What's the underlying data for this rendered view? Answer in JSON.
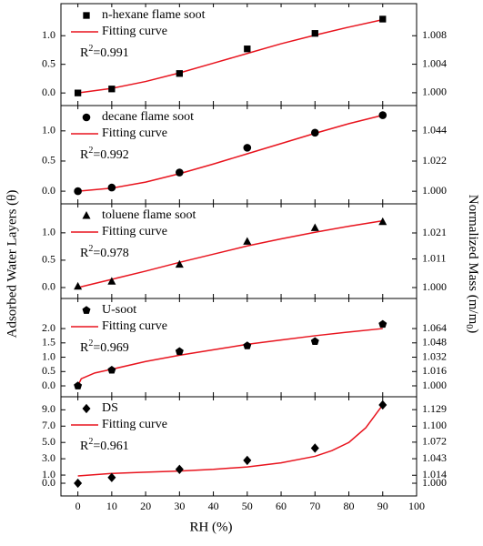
{
  "y_label": "Adsorbed Water Layers (θ)",
  "y2_label": [
    "Normalized Mass (m/m",
    "0",
    ")"
  ],
  "x_label": "RH (%)",
  "xlim": [
    -5,
    100
  ],
  "xticks": [
    0,
    10,
    20,
    30,
    40,
    50,
    60,
    70,
    80,
    90,
    100
  ],
  "chart_data": [
    {
      "type": "scatter",
      "ylim": [
        -0.22,
        1.56
      ],
      "yticks": [
        {
          "value": 0,
          "label": "0.0"
        },
        0.5,
        {
          "value": 1,
          "label": "1.0"
        }
      ],
      "y2lim": [
        0.9982,
        1.0125
      ],
      "y2ticks": [
        {
          "value": 1,
          "label": "1.000"
        },
        1.004,
        1.008
      ],
      "series": [
        {
          "name": "n-hexane flame soot",
          "marker": "square",
          "color": "#000000",
          "x": [
            0,
            10,
            30,
            50,
            70,
            90
          ],
          "values": [
            0,
            0.07,
            0.34,
            0.77,
            1.04,
            1.29
          ]
        },
        {
          "name": "Fitting curve",
          "color": "#e8141e",
          "x": [
            0,
            10,
            20,
            30,
            40,
            50,
            60,
            70,
            80,
            90
          ],
          "values": [
            0,
            0.08,
            0.2,
            0.35,
            0.52,
            0.69,
            0.86,
            1.01,
            1.15,
            1.28
          ]
        }
      ],
      "annotation": [
        "R",
        "2",
        "=0.991"
      ]
    },
    {
      "type": "scatter",
      "ylim": [
        -0.21,
        1.42
      ],
      "yticks": [
        {
          "value": 0,
          "label": "0.0"
        },
        0.5,
        {
          "value": 1,
          "label": "1.0"
        }
      ],
      "y2lim": [
        0.9908,
        1.0625
      ],
      "y2ticks": [
        {
          "value": 1,
          "label": "1.000"
        },
        1.022,
        1.044
      ],
      "series": [
        {
          "name": "decane flame soot",
          "marker": "circle",
          "color": "#000000",
          "x": [
            0,
            10,
            30,
            50,
            70,
            90
          ],
          "values": [
            0,
            0.06,
            0.31,
            0.72,
            0.97,
            1.26
          ]
        },
        {
          "name": "Fitting curve",
          "color": "#e8141e",
          "x": [
            0,
            10,
            20,
            30,
            40,
            50,
            60,
            70,
            80,
            90
          ],
          "values": [
            0,
            0.05,
            0.15,
            0.29,
            0.45,
            0.62,
            0.79,
            0.96,
            1.12,
            1.26
          ]
        }
      ],
      "annotation": [
        "R",
        "2",
        "=0.992"
      ]
    },
    {
      "type": "scatter",
      "ylim": [
        -0.2,
        1.53
      ],
      "yticks": [
        {
          "value": 0,
          "label": "0.0"
        },
        0.5,
        {
          "value": 1,
          "label": "1.0"
        }
      ],
      "y2lim": [
        0.9958,
        1.0322
      ],
      "y2ticks": [
        {
          "value": 1,
          "label": "1.000"
        },
        1.011,
        1.021
      ],
      "series": [
        {
          "name": "toluene flame soot",
          "marker": "triangle",
          "color": "#000000",
          "x": [
            0,
            10,
            30,
            50,
            70,
            90
          ],
          "values": [
            0.02,
            0.11,
            0.42,
            0.84,
            1.09,
            1.2
          ]
        },
        {
          "name": "Fitting curve",
          "color": "#e8141e",
          "x": [
            0,
            10,
            20,
            30,
            40,
            50,
            60,
            70,
            80,
            90
          ],
          "values": [
            0,
            0.15,
            0.3,
            0.46,
            0.61,
            0.76,
            0.89,
            1.01,
            1.12,
            1.22
          ]
        }
      ],
      "annotation": [
        "R",
        "2",
        "=0.978"
      ]
    },
    {
      "type": "scatter",
      "ylim": [
        -0.38,
        3.05
      ],
      "yticks": [
        {
          "value": 0,
          "label": "0.0"
        },
        0.5,
        {
          "value": 1,
          "label": "1.0"
        },
        1.5,
        {
          "value": 2,
          "label": "2.0"
        }
      ],
      "y2lim": [
        0.9878,
        1.0976
      ],
      "y2ticks": [
        {
          "value": 1,
          "label": "1.000"
        },
        1.016,
        1.032,
        1.048,
        1.064
      ],
      "series": [
        {
          "name": "U-soot",
          "marker": "pentagon",
          "color": "#000000",
          "x": [
            0,
            10,
            30,
            50,
            70,
            90
          ],
          "values": [
            0,
            0.55,
            1.2,
            1.4,
            1.55,
            2.15
          ]
        },
        {
          "name": "Fitting curve",
          "color": "#e8141e",
          "x": [
            0,
            1,
            5,
            10,
            20,
            30,
            40,
            50,
            60,
            70,
            80,
            90
          ],
          "values": [
            0,
            0.25,
            0.45,
            0.58,
            0.85,
            1.07,
            1.26,
            1.45,
            1.6,
            1.75,
            1.88,
            2.0
          ]
        }
      ],
      "annotation": [
        "R",
        "2",
        "=0.969"
      ]
    },
    {
      "type": "scatter",
      "ylim": [
        -1.56,
        10.6
      ],
      "yticks": [
        {
          "value": 0,
          "label": "0.0"
        },
        {
          "value": 1,
          "label": "1.0"
        },
        {
          "value": 3,
          "label": "3.0"
        },
        {
          "value": 5,
          "label": "5.0"
        },
        {
          "value": 7,
          "label": "7.0"
        },
        {
          "value": 9,
          "label": "9.0"
        }
      ],
      "y2lim": [
        0.9777,
        1.1516
      ],
      "y2ticks": [
        {
          "value": 1,
          "label": "1.000"
        },
        1.014,
        1.043,
        1.072,
        {
          "value": 1.1,
          "label": "1.100"
        },
        1.129
      ],
      "series": [
        {
          "name": "DS",
          "marker": "diamond",
          "color": "#000000",
          "x": [
            0,
            10,
            30,
            50,
            70,
            90
          ],
          "values": [
            0,
            0.7,
            1.7,
            2.8,
            4.3,
            9.6
          ]
        },
        {
          "name": "Fitting curve",
          "color": "#e8141e",
          "x": [
            0,
            10,
            20,
            30,
            40,
            50,
            60,
            70,
            75,
            80,
            85,
            90
          ],
          "values": [
            0.9,
            1.2,
            1.35,
            1.5,
            1.7,
            2.0,
            2.5,
            3.3,
            4.0,
            5.0,
            6.8,
            9.6
          ]
        }
      ],
      "annotation": [
        "R",
        "2",
        "=0.961"
      ]
    }
  ]
}
